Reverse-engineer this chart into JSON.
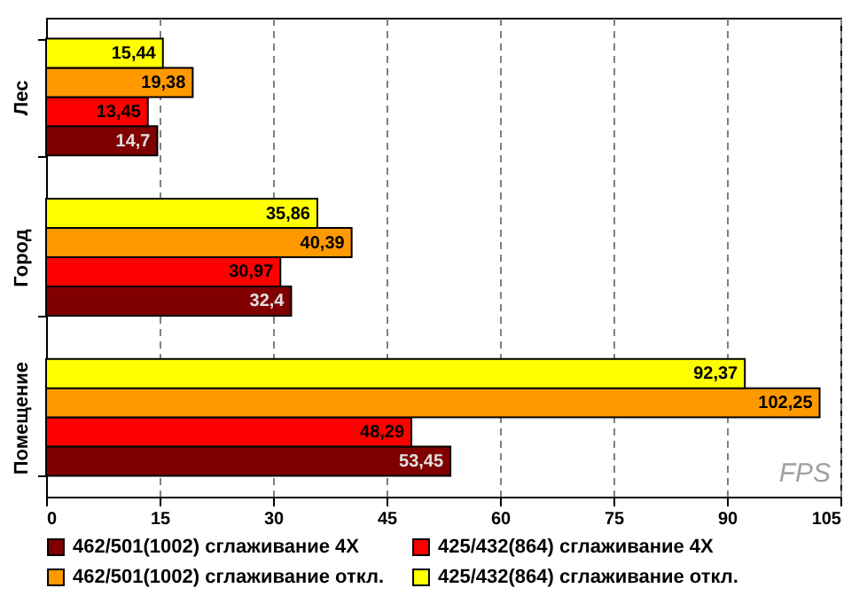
{
  "chart_data": {
    "type": "bar",
    "orientation": "horizontal",
    "xlabel": "FPS",
    "categories": [
      "Лес",
      "Город",
      "Помещение"
    ],
    "series": [
      {
        "name": "462/501(1002) сглаживание 4X",
        "color": "#800000",
        "values": [
          14.7,
          32.4,
          53.45
        ],
        "value_labels": [
          "14,7",
          "32,4",
          "53,45"
        ]
      },
      {
        "name": "425/432(864) сглаживание 4X",
        "color": "#ff0000",
        "values": [
          13.45,
          30.97,
          48.29
        ],
        "value_labels": [
          "13,45",
          "30,97",
          "48,29"
        ]
      },
      {
        "name": "462/501(1002) сглаживание откл.",
        "color": "#ff9900",
        "values": [
          19.38,
          40.39,
          102.25
        ],
        "value_labels": [
          "19,38",
          "40,39",
          "102,25"
        ]
      },
      {
        "name": "425/432(864) сглаживание откл.",
        "color": "#ffff00",
        "values": [
          15.44,
          35.86,
          92.37
        ],
        "value_labels": [
          "15,44",
          "35,86",
          "92,37"
        ]
      }
    ],
    "xlim": [
      0,
      105
    ],
    "xticks": [
      0,
      15,
      30,
      45,
      60,
      75,
      90,
      105
    ],
    "grid": "x",
    "legend": "bottom"
  }
}
